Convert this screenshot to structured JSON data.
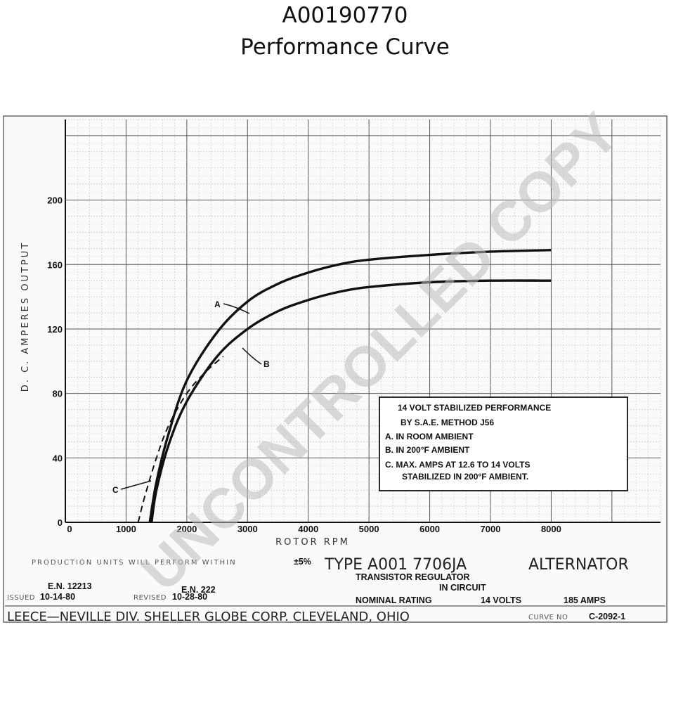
{
  "header": {
    "part_number": "A00190770",
    "title": "Performance Curve"
  },
  "chart_data": {
    "type": "line",
    "xlabel": "ROTOR RPM",
    "ylabel": "D. C. AMPERES OUTPUT",
    "xlim": [
      0,
      9800
    ],
    "ylim": [
      0,
      250
    ],
    "x_ticks": [
      "0",
      "1000",
      "2000",
      "3000",
      "4000",
      "5000",
      "6000",
      "7000",
      "8000"
    ],
    "y_ticks": [
      "0",
      "40",
      "80",
      "120",
      "160",
      "200"
    ],
    "grid": true,
    "series": [
      {
        "name": "A",
        "style": "solid",
        "x": [
          1390,
          1500,
          1700,
          2000,
          2500,
          3000,
          3500,
          4000,
          4500,
          5000,
          6000,
          7000,
          8000
        ],
        "y": [
          0,
          25,
          55,
          88,
          118,
          137,
          148,
          155,
          160,
          163,
          166,
          168,
          169
        ]
      },
      {
        "name": "B",
        "style": "solid",
        "x": [
          1420,
          1500,
          1700,
          2000,
          2500,
          3000,
          3500,
          4000,
          4500,
          5000,
          6000,
          7000,
          8000
        ],
        "y": [
          0,
          20,
          48,
          75,
          103,
          120,
          131,
          138,
          143,
          146,
          149,
          150,
          150
        ]
      },
      {
        "name": "C",
        "style": "dashed",
        "x": [
          1200,
          1300,
          1500,
          1700,
          2000,
          2300,
          2600
        ],
        "y": [
          0,
          15,
          40,
          60,
          80,
          93,
          103
        ]
      }
    ],
    "curve_labels": [
      "A",
      "B",
      "C"
    ],
    "legend": {
      "placement": "lower-right",
      "lines": [
        "14  VOLT STABILIZED PERFORMANCE",
        "BY S.A.E. METHOD  J56",
        "A.  IN ROOM AMBIENT",
        "B.  IN 200°F AMBIENT",
        "C.  MAX. AMPS AT 12.6  TO 14 VOLTS",
        "STABILIZED IN 200°F AMBIENT."
      ]
    }
  },
  "footer": {
    "production_note": "PRODUCTION UNITS WILL PERFORM WITHIN",
    "tolerance": "±5%",
    "type_line": "TYPE  A001 7706JA",
    "alternator": "ALTERNATOR",
    "regulator": "TRANSISTOR  REGULATOR",
    "in_circuit": "IN  CIRCUIT",
    "nominal_rating": "NOMINAL RATING",
    "volts": "14  VOLTS",
    "amps": "185  AMPS",
    "en_issued": "E.N. 12213",
    "issued_label": "ISSUED",
    "issued_date": "10-14-80",
    "en_revised": "E.N. 222",
    "revised_label": "REVISED",
    "revised_date": "10-28-80",
    "company": "LEECE—NEVILLE  DIV.  SHELLER GLOBE  CORP.  CLEVELAND, OHIO",
    "curve_no_label": "CURVE NO",
    "curve_no": "C-2092-1"
  },
  "watermark": "UNCONTROLLED COPY"
}
